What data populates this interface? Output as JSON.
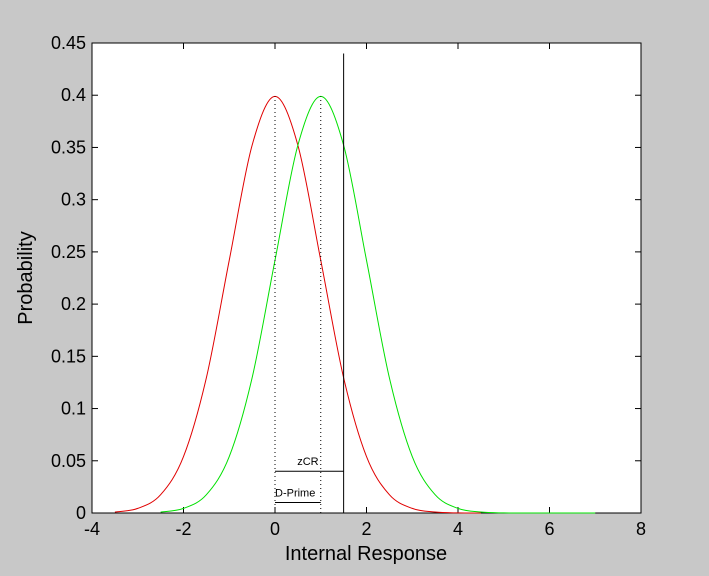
{
  "chart_data": {
    "type": "line",
    "xlabel": "Internal Response",
    "ylabel": "Probability",
    "xlim": [
      -4,
      8
    ],
    "ylim": [
      0,
      0.45
    ],
    "xticks": [
      -4,
      -2,
      0,
      2,
      4,
      6,
      8
    ],
    "yticks": [
      0,
      0.05,
      0.1,
      0.15,
      0.2,
      0.25,
      0.3,
      0.35,
      0.4,
      0.45
    ],
    "grid": false,
    "series": [
      {
        "color": "#e00000",
        "x": [
          -3.5,
          -3,
          -2.5,
          -2,
          -1.5,
          -1,
          -0.5,
          0,
          0.5,
          1,
          1.5,
          2,
          2.5,
          3,
          3.5,
          4,
          4.5
        ],
        "values": [
          0.0009,
          0.0044,
          0.0175,
          0.054,
          0.1295,
          0.242,
          0.3521,
          0.3989,
          0.3521,
          0.242,
          0.1295,
          0.054,
          0.0175,
          0.0044,
          0.0009,
          0.0001,
          0
        ]
      },
      {
        "color": "#00e000",
        "x": [
          -2.5,
          -2,
          -1.5,
          -1,
          -0.5,
          0,
          0.5,
          1,
          1.5,
          2,
          2.5,
          3,
          3.5,
          4,
          4.5,
          5,
          5.5,
          6,
          6.5,
          7
        ],
        "values": [
          0.0009,
          0.0044,
          0.0175,
          0.054,
          0.1295,
          0.242,
          0.3521,
          0.3989,
          0.3521,
          0.242,
          0.1295,
          0.054,
          0.0175,
          0.0044,
          0.0009,
          0.0001,
          0,
          0,
          0,
          0
        ]
      }
    ],
    "criterion": {
      "x": 1.5,
      "ylim": [
        0,
        0.44
      ]
    },
    "means": [
      {
        "x": 0,
        "y": 0.3989
      },
      {
        "x": 1,
        "y": 0.3989
      }
    ],
    "annotations": [
      {
        "label": "zCR",
        "x": [
          0,
          1.5
        ],
        "y": 0.04
      },
      {
        "label": "D-Prime",
        "x": [
          0,
          1
        ],
        "y": 0.01
      }
    ]
  }
}
